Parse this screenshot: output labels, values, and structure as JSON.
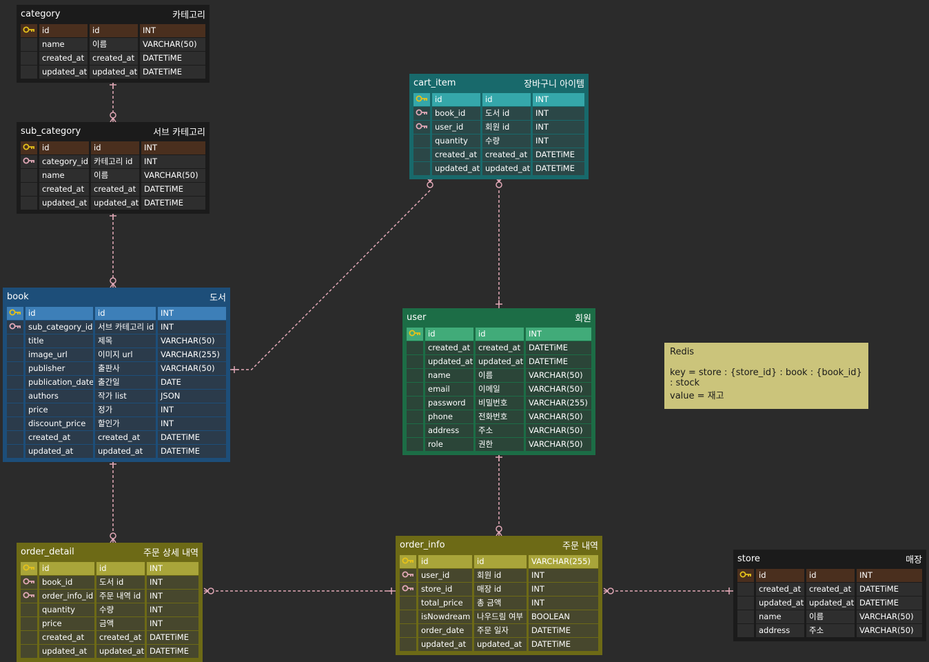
{
  "colors": {
    "relation_line": "#e3a9b8",
    "pk_key": "#e6c21a",
    "fk_key": "#e3a9b8",
    "note_bg": "#cbc47b"
  },
  "tables": [
    {
      "id": "category",
      "name": "category",
      "label": "카테고리",
      "theme": "dark",
      "rows": [
        {
          "key": "pk",
          "cols": [
            "id",
            "id",
            "INT"
          ]
        },
        {
          "key": "",
          "cols": [
            "name",
            "이름",
            "VARCHAR(50)"
          ]
        },
        {
          "key": "",
          "cols": [
            "created_at",
            "created_at",
            "DATETiME"
          ]
        },
        {
          "key": "",
          "cols": [
            "updated_at",
            "updated_at",
            "DATETiME"
          ]
        }
      ]
    },
    {
      "id": "sub_category",
      "name": "sub_category",
      "label": "서브 카테고리",
      "theme": "dark",
      "rows": [
        {
          "key": "pk",
          "cols": [
            "id",
            "id",
            "INT"
          ]
        },
        {
          "key": "fk",
          "cols": [
            "category_id",
            "카테고리 id",
            "INT"
          ]
        },
        {
          "key": "",
          "cols": [
            "name",
            "이름",
            "VARCHAR(50)"
          ]
        },
        {
          "key": "",
          "cols": [
            "created_at",
            "created_at",
            "DATETiME"
          ]
        },
        {
          "key": "",
          "cols": [
            "updated_at",
            "updated_at",
            "DATETiME"
          ]
        }
      ]
    },
    {
      "id": "cart_item",
      "name": "cart_item",
      "label": "장바구니 아이템",
      "theme": "teal",
      "rows": [
        {
          "key": "pk",
          "cols": [
            "id",
            "id",
            "INT"
          ]
        },
        {
          "key": "fk",
          "cols": [
            "book_id",
            "도서 id",
            "INT"
          ]
        },
        {
          "key": "fk",
          "cols": [
            "user_id",
            "회원 id",
            "INT"
          ]
        },
        {
          "key": "",
          "cols": [
            "quantity",
            "수량",
            "INT"
          ]
        },
        {
          "key": "",
          "cols": [
            "created_at",
            "created_at",
            "DATETiME"
          ]
        },
        {
          "key": "",
          "cols": [
            "updated_at",
            "updated_at",
            "DATETiME"
          ]
        }
      ]
    },
    {
      "id": "book",
      "name": "book",
      "label": "도서",
      "theme": "blue",
      "rows": [
        {
          "key": "pk",
          "cols": [
            "id",
            "id",
            "INT"
          ]
        },
        {
          "key": "fk",
          "cols": [
            "sub_category_id",
            "서브 카테고리 id",
            "INT"
          ]
        },
        {
          "key": "",
          "cols": [
            "title",
            "제목",
            "VARCHAR(50)"
          ]
        },
        {
          "key": "",
          "cols": [
            "image_url",
            "이미지 url",
            "VARCHAR(255)"
          ]
        },
        {
          "key": "",
          "cols": [
            "publisher",
            "출판사",
            "VARCHAR(50)"
          ]
        },
        {
          "key": "",
          "cols": [
            "publication_date",
            "출간일",
            "DATE"
          ]
        },
        {
          "key": "",
          "cols": [
            "authors",
            "작가 list",
            "JSON"
          ]
        },
        {
          "key": "",
          "cols": [
            "price",
            "정가",
            "INT"
          ]
        },
        {
          "key": "",
          "cols": [
            "discount_price",
            "할인가",
            "INT"
          ]
        },
        {
          "key": "",
          "cols": [
            "created_at",
            "created_at",
            "DATETiME"
          ]
        },
        {
          "key": "",
          "cols": [
            "updated_at",
            "updated_at",
            "DATETiME"
          ]
        }
      ]
    },
    {
      "id": "user",
      "name": "user",
      "label": "회원",
      "theme": "green",
      "rows": [
        {
          "key": "pk",
          "cols": [
            "id",
            "id",
            "INT"
          ]
        },
        {
          "key": "",
          "cols": [
            "created_at",
            "created_at",
            "DATETiME"
          ]
        },
        {
          "key": "",
          "cols": [
            "updated_at",
            "updated_at",
            "DATETiME"
          ]
        },
        {
          "key": "",
          "cols": [
            "name",
            "이름",
            "VARCHAR(50)"
          ]
        },
        {
          "key": "",
          "cols": [
            "email",
            "이메일",
            "VARCHAR(50)"
          ]
        },
        {
          "key": "",
          "cols": [
            "password",
            "비밀번호",
            "VARCHAR(255)"
          ]
        },
        {
          "key": "",
          "cols": [
            "phone",
            "전화번호",
            "VARCHAR(50)"
          ]
        },
        {
          "key": "",
          "cols": [
            "address",
            "주소",
            "VARCHAR(50)"
          ]
        },
        {
          "key": "",
          "cols": [
            "role",
            "권한",
            "VARCHAR(50)"
          ]
        }
      ]
    },
    {
      "id": "order_detail",
      "name": "order_detail",
      "label": "주문 상세 내역",
      "theme": "olive",
      "rows": [
        {
          "key": "pk",
          "cols": [
            "id",
            "id",
            "INT"
          ]
        },
        {
          "key": "fk",
          "cols": [
            "book_id",
            "도서 id",
            "INT"
          ]
        },
        {
          "key": "fk",
          "cols": [
            "order_info_id",
            "주문 내역 id",
            "INT"
          ]
        },
        {
          "key": "",
          "cols": [
            "quantity",
            "수량",
            "INT"
          ]
        },
        {
          "key": "",
          "cols": [
            "price",
            "금액",
            "INT"
          ]
        },
        {
          "key": "",
          "cols": [
            "created_at",
            "created_at",
            "DATETiME"
          ]
        },
        {
          "key": "",
          "cols": [
            "updated_at",
            "updated_at",
            "DATETiME"
          ]
        }
      ]
    },
    {
      "id": "order_info",
      "name": "order_info",
      "label": "주문 내역",
      "theme": "olive",
      "rows": [
        {
          "key": "pk",
          "cols": [
            "id",
            "id",
            "VARCHAR(255)"
          ]
        },
        {
          "key": "fk",
          "cols": [
            "user_id",
            "회원 id",
            "INT"
          ]
        },
        {
          "key": "fk",
          "cols": [
            "store_id",
            "매장 id",
            "INT"
          ]
        },
        {
          "key": "",
          "cols": [
            "total_price",
            "총 금액",
            "INT"
          ]
        },
        {
          "key": "",
          "cols": [
            "isNowdream",
            "나우드림 여부",
            "BOOLEAN"
          ]
        },
        {
          "key": "",
          "cols": [
            "order_date",
            "주문 일자",
            "DATETiME"
          ]
        },
        {
          "key": "",
          "cols": [
            "updated_at",
            "updated_at",
            "DATETiME"
          ]
        }
      ]
    },
    {
      "id": "store",
      "name": "store",
      "label": "매장",
      "theme": "dark",
      "rows": [
        {
          "key": "pk",
          "cols": [
            "id",
            "id",
            "INT"
          ]
        },
        {
          "key": "",
          "cols": [
            "created_at",
            "created_at",
            "DATETiME"
          ]
        },
        {
          "key": "",
          "cols": [
            "updated_at",
            "updated_at",
            "DATETiME"
          ]
        },
        {
          "key": "",
          "cols": [
            "name",
            "이름",
            "VARCHAR(50)"
          ]
        },
        {
          "key": "",
          "cols": [
            "address",
            "주소",
            "VARCHAR(50)"
          ]
        }
      ]
    }
  ],
  "relations": [
    {
      "from": "category",
      "to": "sub_category",
      "type": "one-to-zero-or-many"
    },
    {
      "from": "sub_category",
      "to": "book",
      "type": "one-to-zero-or-many"
    },
    {
      "from": "book",
      "to": "cart_item",
      "type": "one-to-zero-or-many"
    },
    {
      "from": "user",
      "to": "cart_item",
      "type": "one-to-zero-or-many"
    },
    {
      "from": "book",
      "to": "order_detail",
      "type": "one-to-zero-or-many"
    },
    {
      "from": "user",
      "to": "order_info",
      "type": "one-to-zero-or-many"
    },
    {
      "from": "order_info",
      "to": "order_detail",
      "type": "one-to-zero-or-many"
    },
    {
      "from": "store",
      "to": "order_info",
      "type": "one-to-zero-or-many"
    }
  ],
  "note": {
    "title": "Redis",
    "line1": "key = store : {store_id} : book : {book_id} : stock",
    "line2": "value = 재고"
  }
}
